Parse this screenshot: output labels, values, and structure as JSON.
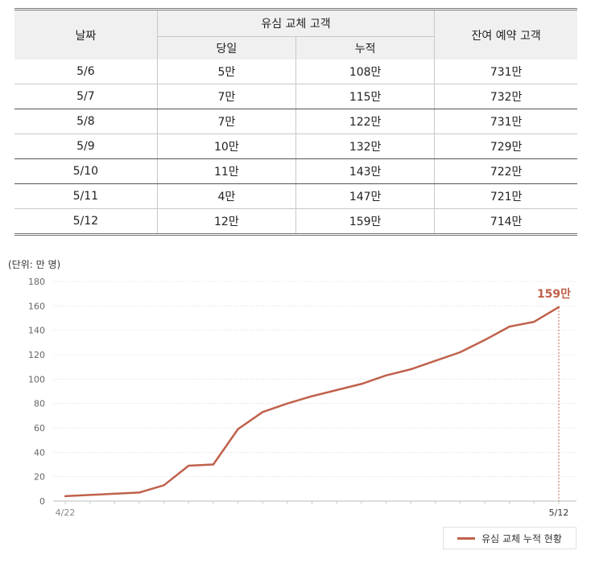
{
  "table": {
    "header_date": "날짜",
    "header_group": "유심 교체 고객",
    "header_daily": "당일",
    "header_cumulative": "누적",
    "header_remaining": "잔여 예약 고객",
    "rows": [
      {
        "date": "5/6",
        "daily": "5만",
        "cumulative": "108만",
        "remaining": "731만"
      },
      {
        "date": "5/7",
        "daily": "7만",
        "cumulative": "115만",
        "remaining": "732만"
      },
      {
        "date": "5/8",
        "daily": "7만",
        "cumulative": "122만",
        "remaining": "731만"
      },
      {
        "date": "5/9",
        "daily": "10만",
        "cumulative": "132만",
        "remaining": "729만"
      },
      {
        "date": "5/10",
        "daily": "11만",
        "cumulative": "143만",
        "remaining": "722만"
      },
      {
        "date": "5/11",
        "daily": "4만",
        "cumulative": "147만",
        "remaining": "721만"
      },
      {
        "date": "5/12",
        "daily": "12만",
        "cumulative": "159만",
        "remaining": "714만"
      }
    ]
  },
  "chart_data": {
    "type": "line",
    "unit_label": "(단위: 만 명)",
    "x": [
      "4/22",
      "4/23",
      "4/24",
      "4/25",
      "4/26",
      "4/27",
      "4/28",
      "4/29",
      "4/30",
      "5/1",
      "5/2",
      "5/3",
      "5/4",
      "5/5",
      "5/6",
      "5/7",
      "5/8",
      "5/9",
      "5/10",
      "5/11",
      "5/12"
    ],
    "x_tick_labels": [
      "4/22",
      "5/12"
    ],
    "series": [
      {
        "name": "유심 교체 누적 현황",
        "color": "#c0614b",
        "values": [
          4,
          5,
          6,
          7,
          13,
          29,
          30,
          59,
          73,
          80,
          86,
          91,
          96,
          103,
          108,
          115,
          122,
          132,
          143,
          147,
          159
        ]
      }
    ],
    "ylim": [
      0,
      180
    ],
    "y_ticks": [
      0,
      20,
      40,
      60,
      80,
      100,
      120,
      140,
      160,
      180
    ],
    "annotation": {
      "x": "5/12",
      "label": "159만"
    },
    "grid": true,
    "legend": "bottom-right"
  }
}
